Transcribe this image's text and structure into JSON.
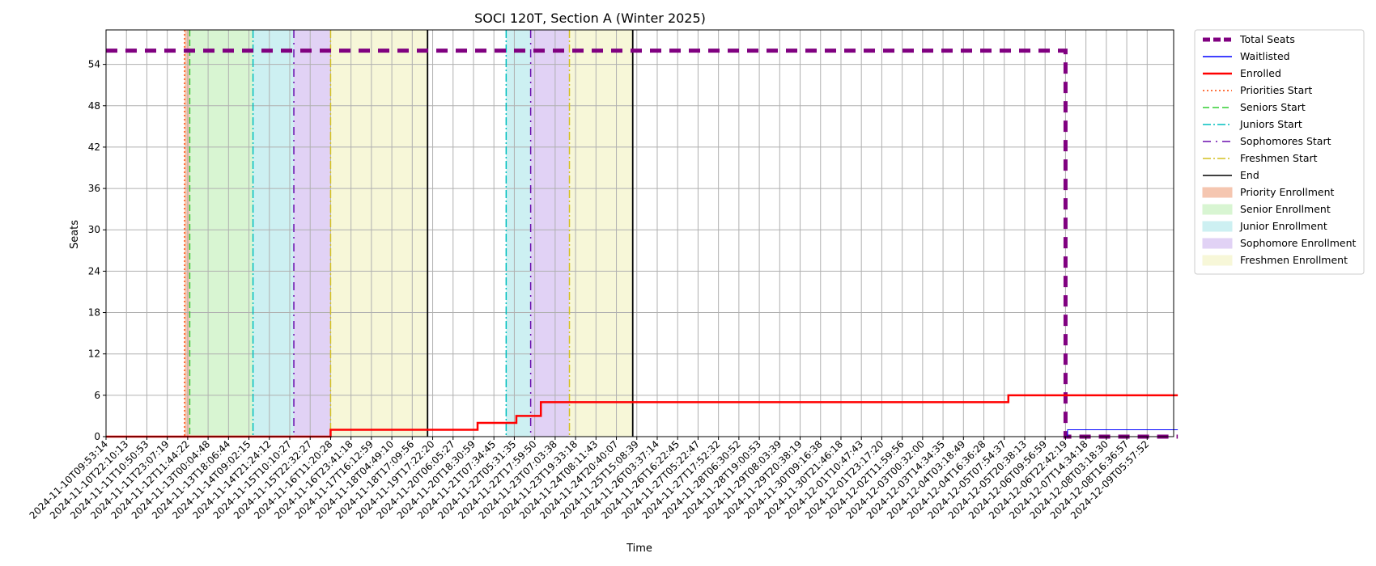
{
  "chart_data": {
    "type": "line",
    "title": "SOCI 120T, Section A (Winter 2025)",
    "xlabel": "Time",
    "ylabel": "Seats",
    "ylim": [
      0,
      59
    ],
    "yticks": [
      0,
      6,
      12,
      18,
      24,
      30,
      36,
      42,
      48,
      54
    ],
    "grid": true,
    "legend_position": "outside-right-top",
    "x_categories": [
      "2024-11-10T09:53:14",
      "2024-11-10T22:10:13",
      "2024-11-11T10:50:53",
      "2024-11-11T23:07:19",
      "2024-11-12T11:44:22",
      "2024-11-13T00:04:48",
      "2024-11-13T18:06:44",
      "2024-11-14T09:02:15",
      "2024-11-14T21:24:12",
      "2024-11-15T10:10:27",
      "2024-11-15T22:32:27",
      "2024-11-16T11:20:28",
      "2024-11-16T23:41:18",
      "2024-11-17T16:12:59",
      "2024-11-18T04:49:10",
      "2024-11-18T17:09:56",
      "2024-11-19T17:22:20",
      "2024-11-20T06:05:27",
      "2024-11-20T18:30:59",
      "2024-11-21T07:34:45",
      "2024-11-22T05:31:35",
      "2024-11-22T17:59:50",
      "2024-11-23T07:03:38",
      "2024-11-23T19:33:18",
      "2024-11-24T08:11:43",
      "2024-11-24T20:40:07",
      "2024-11-25T15:08:39",
      "2024-11-26T03:37:14",
      "2024-11-26T16:22:45",
      "2024-11-27T05:22:47",
      "2024-11-27T17:52:32",
      "2024-11-28T06:30:52",
      "2024-11-28T19:00:53",
      "2024-11-29T08:03:39",
      "2024-11-29T20:38:19",
      "2024-11-30T09:16:38",
      "2024-11-30T21:46:18",
      "2024-12-01T10:47:43",
      "2024-12-01T23:17:20",
      "2024-12-02T11:59:56",
      "2024-12-03T00:32:00",
      "2024-12-03T14:34:35",
      "2024-12-04T03:18:49",
      "2024-12-04T16:36:28",
      "2024-12-05T07:54:37",
      "2024-12-05T20:38:13",
      "2024-12-06T09:56:59",
      "2024-12-06T22:42:19",
      "2024-12-07T14:34:18",
      "2024-12-08T03:18:30",
      "2024-12-08T16:36:57",
      "2024-12-09T05:57:52"
    ],
    "series": [
      {
        "name": "Total Seats",
        "color": "#800080",
        "style": "dashed-thick",
        "points": [
          [
            0,
            56
          ],
          [
            47,
            56
          ],
          [
            47,
            0
          ],
          [
            52.5,
            0
          ]
        ]
      },
      {
        "name": "Waitlisted",
        "color": "#0000ff",
        "style": "solid-thin",
        "points": [
          [
            0,
            0
          ],
          [
            47.1,
            0
          ],
          [
            47.1,
            1
          ],
          [
            52.5,
            1
          ]
        ]
      },
      {
        "name": "Enrolled",
        "color": "#ff0000",
        "style": "solid",
        "points": [
          [
            0,
            0
          ],
          [
            11.0,
            0
          ],
          [
            11.0,
            1
          ],
          [
            18.2,
            1
          ],
          [
            18.2,
            2
          ],
          [
            20.1,
            2
          ],
          [
            20.1,
            3
          ],
          [
            21.3,
            3
          ],
          [
            21.3,
            5
          ],
          [
            44.2,
            5
          ],
          [
            44.2,
            6
          ],
          [
            52.5,
            6
          ]
        ]
      }
    ],
    "vlines": [
      {
        "name": "Priorities Start",
        "x": 3.85,
        "color": "#ff4500",
        "style": "dotted"
      },
      {
        "name": "Seniors Start",
        "x": 4.1,
        "color": "#32cd32",
        "style": "dashed"
      },
      {
        "name": "Juniors Start",
        "x": 7.2,
        "color": "#00bfbf",
        "style": "dashdot"
      },
      {
        "name": "Juniors Start",
        "x": 19.6,
        "color": "#00bfbf",
        "style": "dashdot"
      },
      {
        "name": "Sophomores Start",
        "x": 9.2,
        "color": "#6a0dad",
        "style": "dashdot-sparse"
      },
      {
        "name": "Sophomores Start",
        "x": 20.8,
        "color": "#6a0dad",
        "style": "dashdot-sparse"
      },
      {
        "name": "Freshmen Start",
        "x": 11.0,
        "color": "#d4c020",
        "style": "dashdot"
      },
      {
        "name": "Freshmen Start",
        "x": 22.7,
        "color": "#d4c020",
        "style": "dashdot"
      },
      {
        "name": "End",
        "x": 15.75,
        "color": "#000000",
        "style": "solid"
      },
      {
        "name": "End",
        "x": 25.8,
        "color": "#000000",
        "style": "solid"
      }
    ],
    "spans": [
      {
        "name": "Priority Enrollment",
        "from": 3.85,
        "to": 4.1,
        "color": "#f5c6b0"
      },
      {
        "name": "Senior Enrollment",
        "from": 4.1,
        "to": 7.2,
        "color": "#d8f5d2"
      },
      {
        "name": "Junior Enrollment",
        "from": 7.2,
        "to": 9.2,
        "color": "#cdf0f2"
      },
      {
        "name": "Sophomore Enrollment",
        "from": 9.2,
        "to": 11.0,
        "color": "#e1d2f5"
      },
      {
        "name": "Freshmen Enrollment",
        "from": 11.0,
        "to": 15.75,
        "color": "#f7f7d8"
      },
      {
        "name": "Junior Enrollment",
        "from": 19.6,
        "to": 20.8,
        "color": "#cdf0f2"
      },
      {
        "name": "Sophomore Enrollment",
        "from": 20.8,
        "to": 22.7,
        "color": "#e1d2f5"
      },
      {
        "name": "Freshmen Enrollment",
        "from": 22.7,
        "to": 25.8,
        "color": "#f7f7d8"
      }
    ],
    "legend": [
      {
        "label": "Total Seats",
        "kind": "line",
        "color": "#800080",
        "style": "dashed-thick"
      },
      {
        "label": "Waitlisted",
        "kind": "line",
        "color": "#0000ff",
        "style": "solid-thin"
      },
      {
        "label": "Enrolled",
        "kind": "line",
        "color": "#ff0000",
        "style": "solid"
      },
      {
        "label": "Priorities Start",
        "kind": "line",
        "color": "#ff4500",
        "style": "dotted"
      },
      {
        "label": "Seniors Start",
        "kind": "line",
        "color": "#32cd32",
        "style": "dashed"
      },
      {
        "label": "Juniors Start",
        "kind": "line",
        "color": "#00bfbf",
        "style": "dashdot"
      },
      {
        "label": "Sophomores Start",
        "kind": "line",
        "color": "#6a0dad",
        "style": "dashdot-sparse"
      },
      {
        "label": "Freshmen Start",
        "kind": "line",
        "color": "#d4c020",
        "style": "dashdot"
      },
      {
        "label": "End",
        "kind": "line",
        "color": "#000000",
        "style": "solid"
      },
      {
        "label": "Priority Enrollment",
        "kind": "patch",
        "color": "#f5c6b0"
      },
      {
        "label": "Senior Enrollment",
        "kind": "patch",
        "color": "#d8f5d2"
      },
      {
        "label": "Junior Enrollment",
        "kind": "patch",
        "color": "#cdf0f2"
      },
      {
        "label": "Sophomore Enrollment",
        "kind": "patch",
        "color": "#e1d2f5"
      },
      {
        "label": "Freshmen Enrollment",
        "kind": "patch",
        "color": "#f7f7d8"
      }
    ]
  }
}
